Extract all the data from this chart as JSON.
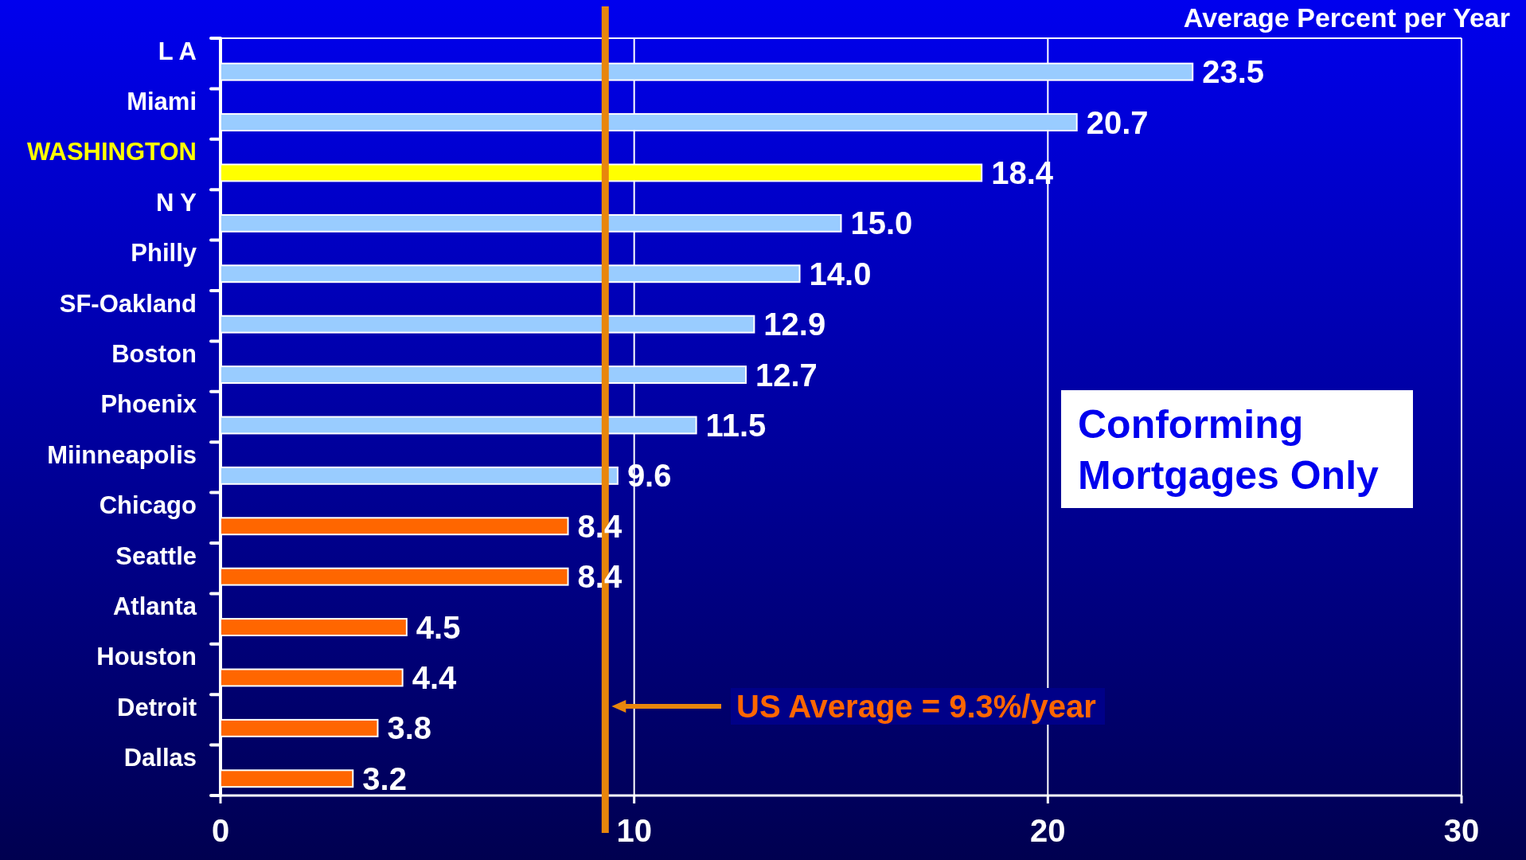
{
  "chart_data": {
    "type": "bar",
    "orientation": "horizontal",
    "title": "Average Percent per Year",
    "categories": [
      "L A",
      "Miami",
      "WASHINGTON",
      "N Y",
      "Philly",
      "SF-Oakland",
      "Boston",
      "Phoenix",
      "Miinneapolis",
      "Chicago",
      "Seattle",
      "Atlanta",
      "Houston",
      "Detroit",
      "Dallas"
    ],
    "values": [
      23.5,
      20.7,
      18.4,
      15.0,
      14.0,
      12.9,
      12.7,
      11.5,
      9.6,
      8.4,
      8.4,
      4.5,
      4.4,
      3.8,
      3.2
    ],
    "value_labels": [
      "23.5",
      "20.7",
      "18.4",
      "15.0",
      "14.0",
      "12.9",
      "12.7",
      "11.5",
      "9.6",
      "8.4",
      "8.4",
      "4.5",
      "4.4",
      "3.8",
      "3.2"
    ],
    "colors": [
      "#99ccff",
      "#99ccff",
      "#ffff00",
      "#99ccff",
      "#99ccff",
      "#99ccff",
      "#99ccff",
      "#99ccff",
      "#99ccff",
      "#ff6600",
      "#ff6600",
      "#ff6600",
      "#ff6600",
      "#ff6600",
      "#ff6600"
    ],
    "xlim": [
      0,
      30
    ],
    "xticks": [
      0,
      10,
      20,
      30
    ],
    "grid": "x",
    "ref_lines": [
      {
        "axis": "x",
        "value": 9.3,
        "label": "US Average = 9.3%/year",
        "color": "#e8860c"
      }
    ],
    "annotations": [
      "Conforming Mortgages Only"
    ]
  }
}
